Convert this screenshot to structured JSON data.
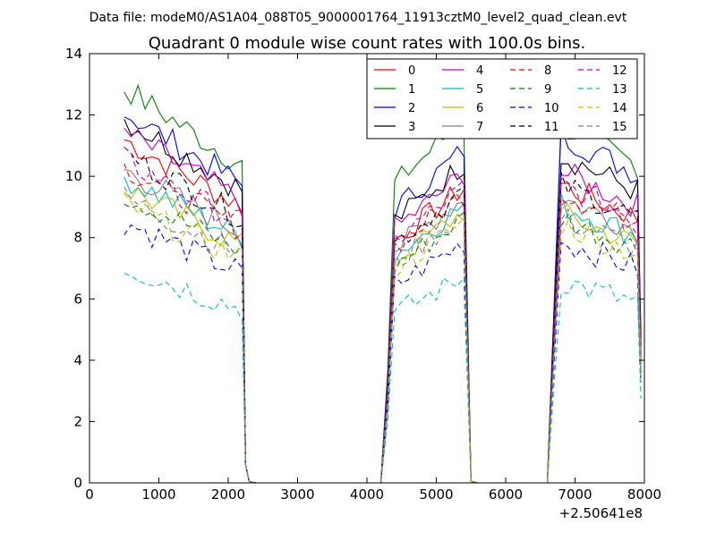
{
  "chart_data": {
    "type": "line",
    "suptitle": "Data file: modeM0/AS1A04_088T05_9000001764_11913cztM0_level2_quad_clean.evt",
    "title": "Quadrant 0 module wise count rates with 100.0s bins.",
    "xlabel": "",
    "ylabel": "",
    "x_offset_label": "+2.50641e8",
    "xlim": [
      0,
      8000
    ],
    "ylim": [
      0,
      14
    ],
    "xticks": [
      "0",
      "1000",
      "2000",
      "3000",
      "4000",
      "5000",
      "6000",
      "7000",
      "8000"
    ],
    "yticks": [
      "0",
      "2",
      "4",
      "6",
      "8",
      "10",
      "12",
      "14"
    ],
    "legend_position": "top-right",
    "legend_columns": 4,
    "segments": [
      [
        500,
        2200
      ],
      [
        4200,
        5500
      ],
      [
        6600,
        7900
      ]
    ],
    "gap_ramps": [
      2300,
      4300,
      5600,
      6700
    ],
    "series": [
      {
        "name": "0",
        "color": "#ff0000",
        "dash": "solid",
        "levels": [
          10.0,
          8.6,
          9.0
        ]
      },
      {
        "name": "1",
        "color": "#008000",
        "dash": "solid",
        "levels": [
          11.5,
          10.6,
          10.8
        ]
      },
      {
        "name": "2",
        "color": "#0000ff",
        "dash": "solid",
        "levels": [
          10.8,
          9.7,
          10.5
        ]
      },
      {
        "name": "3",
        "color": "#000000",
        "dash": "solid",
        "levels": [
          10.6,
          9.3,
          9.9
        ]
      },
      {
        "name": "4",
        "color": "#bf00bf",
        "dash": "solid",
        "levels": [
          10.2,
          9.0,
          9.4
        ]
      },
      {
        "name": "5",
        "color": "#00bfbf",
        "dash": "solid",
        "levels": [
          8.9,
          8.1,
          8.4
        ]
      },
      {
        "name": "6",
        "color": "#bfbf00",
        "dash": "solid",
        "levels": [
          8.6,
          7.9,
          8.1
        ]
      },
      {
        "name": "7",
        "color": "#808080",
        "dash": "solid",
        "levels": [
          9.1,
          8.3,
          8.6
        ]
      },
      {
        "name": "8",
        "color": "#ff0000",
        "dash": "dashed",
        "levels": [
          9.2,
          8.4,
          8.8
        ]
      },
      {
        "name": "9",
        "color": "#008000",
        "dash": "dashed",
        "levels": [
          8.4,
          7.7,
          8.0
        ]
      },
      {
        "name": "10",
        "color": "#0000ff",
        "dash": "dashed",
        "levels": [
          7.6,
          7.0,
          7.3
        ]
      },
      {
        "name": "11",
        "color": "#000000",
        "dash": "dashed",
        "levels": [
          9.6,
          8.5,
          9.0
        ]
      },
      {
        "name": "12",
        "color": "#bf00bf",
        "dash": "dashed",
        "levels": [
          9.4,
          8.6,
          9.0
        ]
      },
      {
        "name": "13",
        "color": "#00bfbf",
        "dash": "dashed",
        "levels": [
          6.3,
          6.0,
          6.1
        ]
      },
      {
        "name": "14",
        "color": "#bfbf00",
        "dash": "dashed",
        "levels": [
          8.1,
          7.6,
          7.8
        ]
      },
      {
        "name": "15",
        "color": "#808080",
        "dash": "dashed",
        "levels": [
          8.3,
          7.8,
          8.0
        ]
      }
    ]
  }
}
